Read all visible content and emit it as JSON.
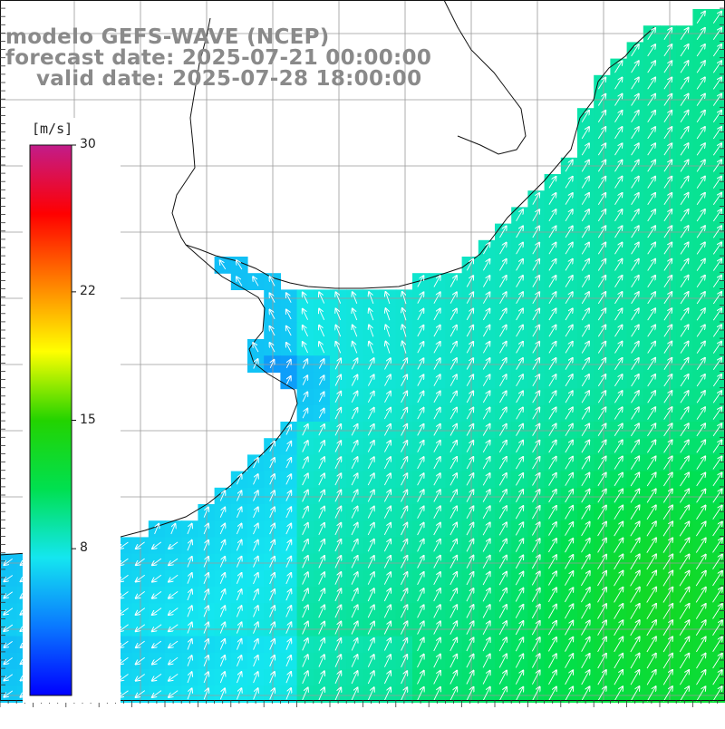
{
  "title": {
    "line1": "modelo GEFS-WAVE (NCEP)",
    "line2": "forecast date: 2025-07-21 00:00:00",
    "line3": "valid date: 2025-07-28 18:00:00"
  },
  "colorbar": {
    "unit": "[m/s]",
    "min": 0,
    "max": 30,
    "tick_labels": [
      {
        "value": 30,
        "text": "30"
      },
      {
        "value": 22,
        "text": "22"
      },
      {
        "value": 15,
        "text": "15"
      },
      {
        "value": 8,
        "text": "8"
      }
    ],
    "colors": [
      "#0000ff",
      "#0a78ff",
      "#14e6f0",
      "#00e050",
      "#23d300",
      "#ffff00",
      "#ff8000",
      "#ff0000",
      "#c21c8a"
    ]
  },
  "map": {
    "variable": "wind speed and direction",
    "dominant_flow": "northeastward offshore, north-westward over the estuary"
  }
}
